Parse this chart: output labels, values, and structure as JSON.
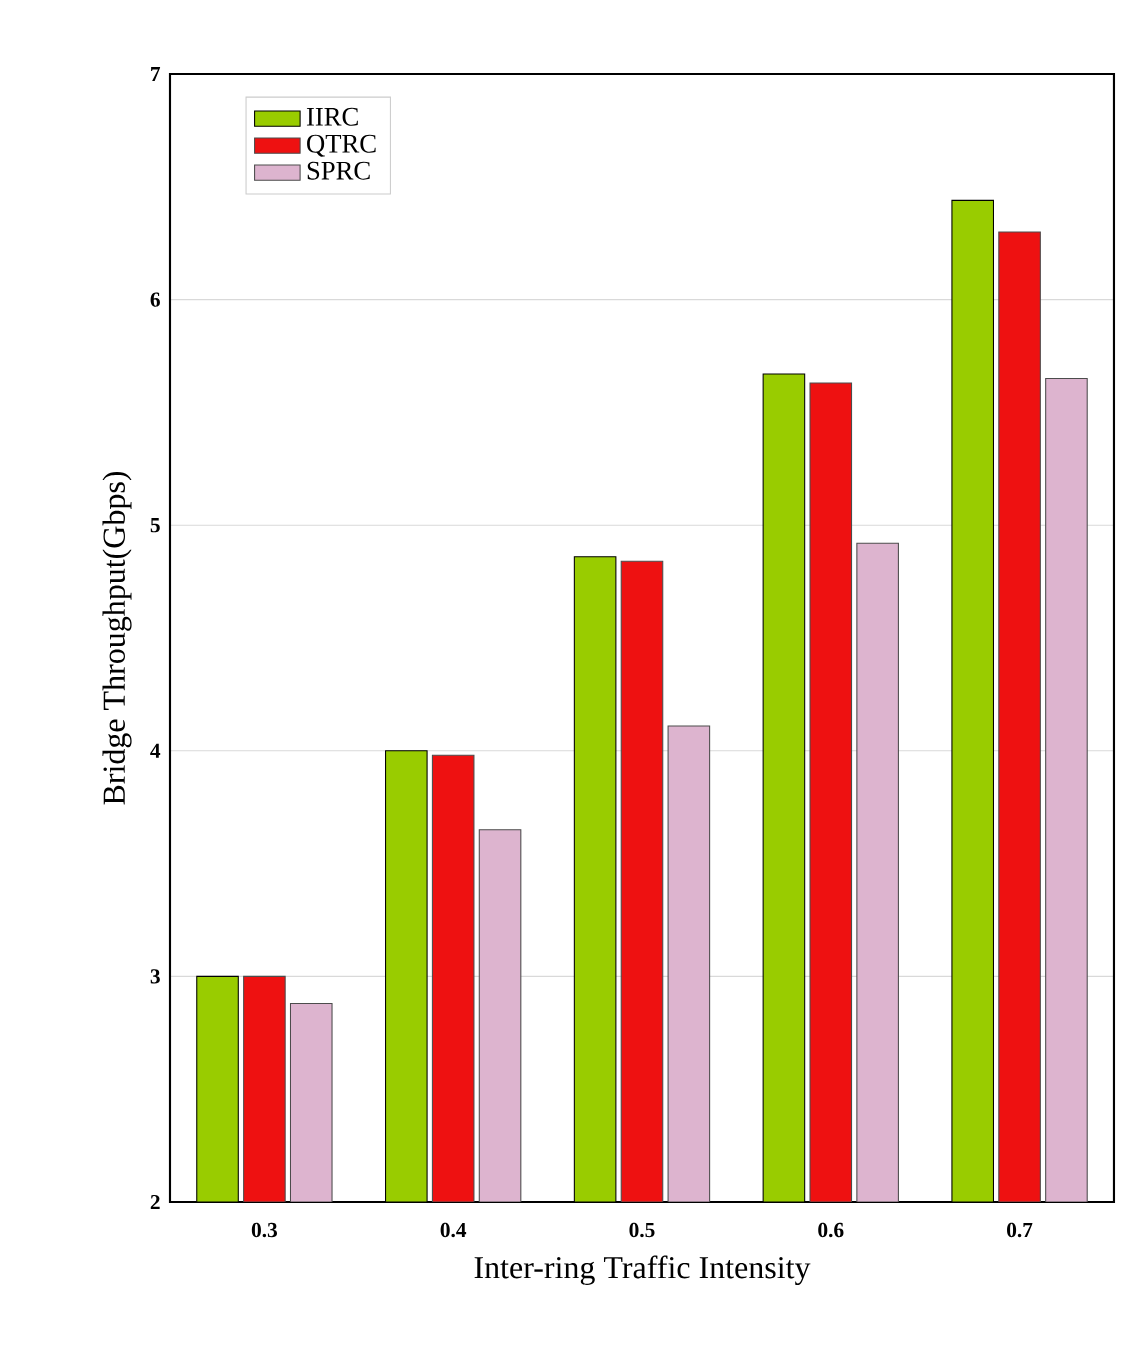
{
  "chart_data": {
    "type": "bar",
    "xlabel": "Inter-ring Traffic Intensity",
    "ylabel": "Bridge Throughput(Gbps)",
    "categories": [
      "0.3",
      "0.4",
      "0.5",
      "0.6",
      "0.7"
    ],
    "series": [
      {
        "name": "IIRC",
        "color": "#99cc00",
        "values": [
          3.0,
          4.0,
          4.86,
          5.67,
          6.44
        ]
      },
      {
        "name": "QTRC",
        "color": "#ee1111",
        "values": [
          3.0,
          3.98,
          4.84,
          5.63,
          6.3
        ]
      },
      {
        "name": "SPRC",
        "color": "#ddb4cf",
        "values": [
          2.88,
          3.65,
          4.11,
          4.92,
          5.65
        ]
      }
    ],
    "ylim": [
      2,
      7
    ],
    "yticks": [
      2,
      3,
      4,
      5,
      6,
      7
    ],
    "grid": "y",
    "legend": "top left"
  }
}
